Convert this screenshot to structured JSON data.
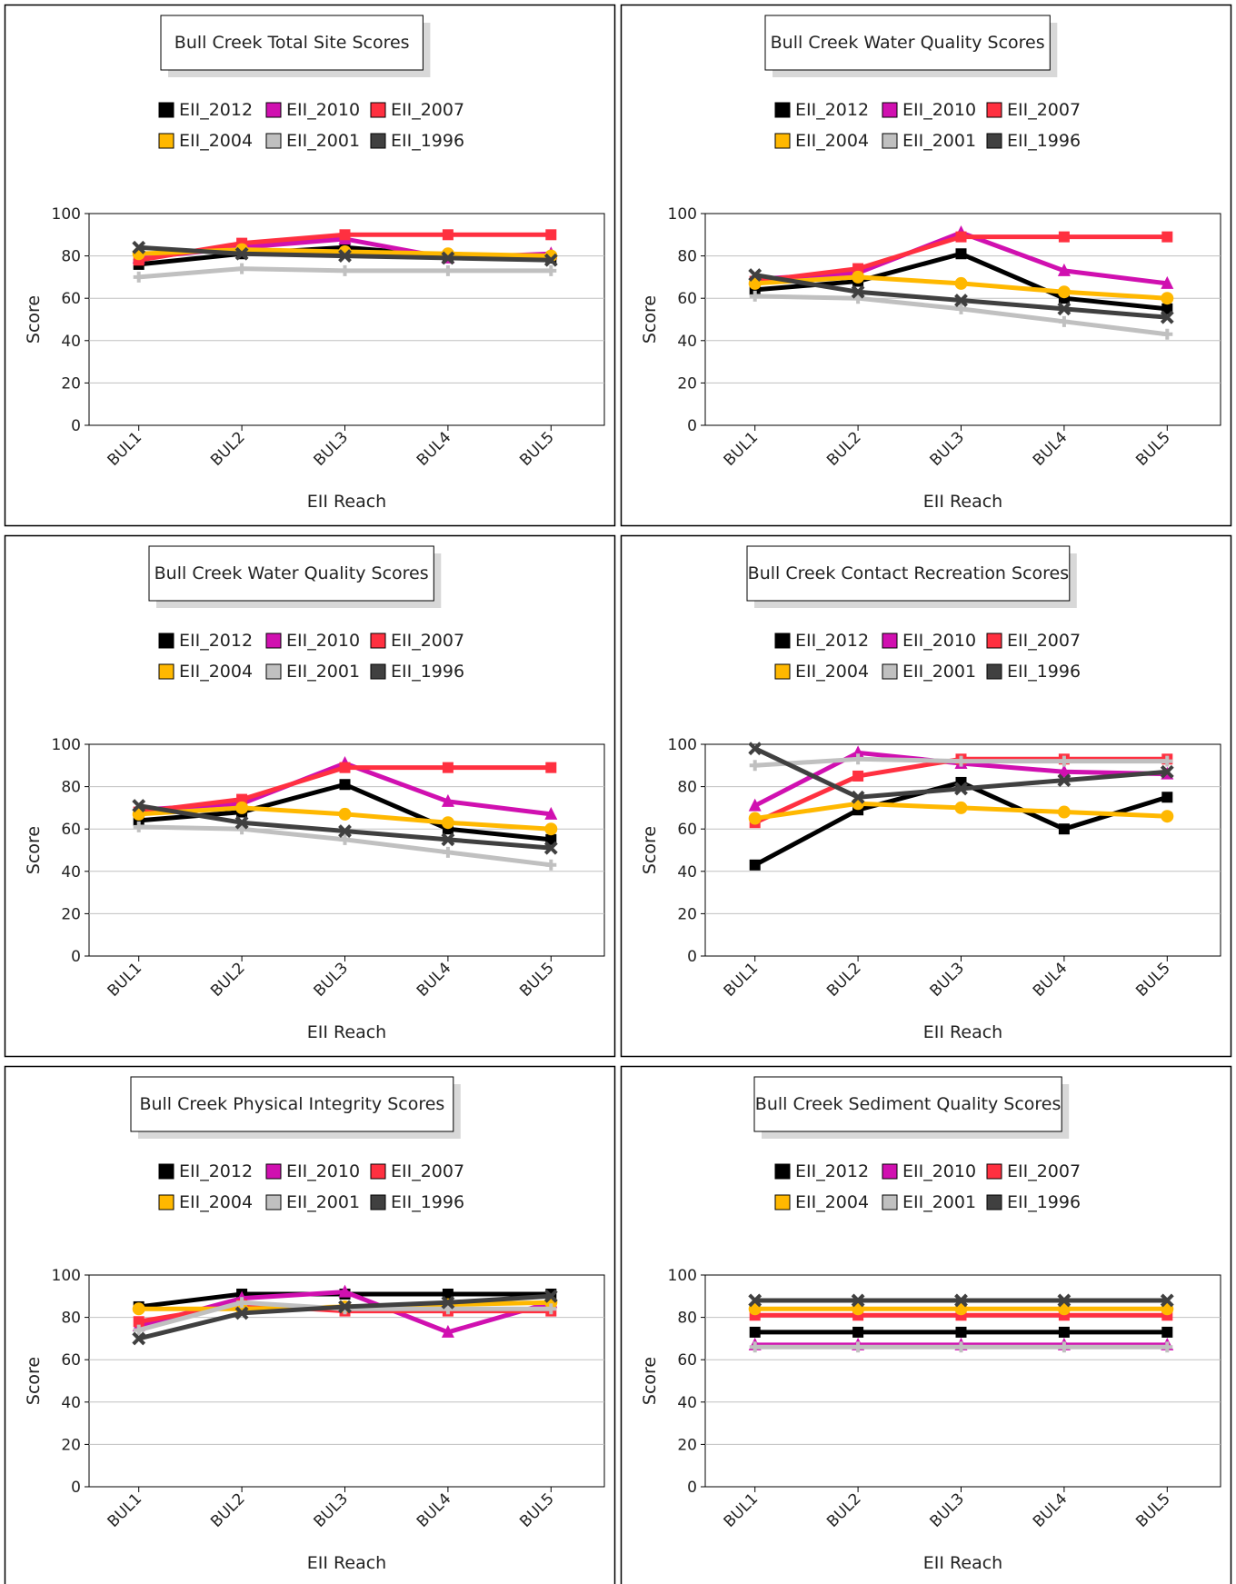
{
  "legend_colors": {
    "EII_2012": "#000000",
    "EII_2010": "#d010b0",
    "EII_2007": "#ff3040",
    "EII_2004": "#ffb800",
    "EII_2001": "#c0c0c0",
    "EII_1996": "#404040"
  },
  "chart_data": [
    {
      "type": "line",
      "title": "Bull Creek Total Site Scores",
      "xlabel": "EII Reach",
      "ylabel": "Score",
      "ylim": [
        0,
        100
      ],
      "yticks": [
        0,
        20,
        40,
        60,
        80,
        100
      ],
      "grid": true,
      "legend_position": "top",
      "categories": [
        "BUL1",
        "BUL2",
        "BUL3",
        "BUL4",
        "BUL5"
      ],
      "series": [
        {
          "name": "EII_2012",
          "color": "#000000",
          "marker": "square",
          "values": [
            76,
            81,
            84,
            80,
            79
          ]
        },
        {
          "name": "EII_2010",
          "color": "#d010b0",
          "marker": "triangle",
          "values": [
            79,
            84,
            88,
            79,
            81
          ]
        },
        {
          "name": "EII_2007",
          "color": "#ff3040",
          "marker": "square",
          "values": [
            78,
            86,
            90,
            90,
            90
          ]
        },
        {
          "name": "EII_2004",
          "color": "#ffb800",
          "marker": "circle",
          "values": [
            81,
            83,
            82,
            81,
            80
          ]
        },
        {
          "name": "EII_2001",
          "color": "#c0c0c0",
          "marker": "plus",
          "values": [
            70,
            74,
            73,
            73,
            73
          ]
        },
        {
          "name": "EII_1996",
          "color": "#404040",
          "marker": "x",
          "values": [
            84,
            81,
            80,
            79,
            78
          ]
        }
      ]
    },
    {
      "type": "line",
      "title": "Bull Creek Water Quality Scores",
      "xlabel": "EII Reach",
      "ylabel": "Score",
      "ylim": [
        0,
        100
      ],
      "yticks": [
        0,
        20,
        40,
        60,
        80,
        100
      ],
      "grid": true,
      "legend_position": "top",
      "categories": [
        "BUL1",
        "BUL2",
        "BUL3",
        "BUL4",
        "BUL5"
      ],
      "series": [
        {
          "name": "EII_2012",
          "color": "#000000",
          "marker": "square",
          "values": [
            64,
            68,
            81,
            60,
            55
          ]
        },
        {
          "name": "EII_2010",
          "color": "#d010b0",
          "marker": "triangle",
          "values": [
            69,
            72,
            91,
            73,
            67
          ]
        },
        {
          "name": "EII_2007",
          "color": "#ff3040",
          "marker": "square",
          "values": [
            68,
            74,
            89,
            89,
            89
          ]
        },
        {
          "name": "EII_2004",
          "color": "#ffb800",
          "marker": "circle",
          "values": [
            67,
            70,
            67,
            63,
            60
          ]
        },
        {
          "name": "EII_2001",
          "color": "#c0c0c0",
          "marker": "plus",
          "values": [
            61,
            60,
            55,
            49,
            43
          ]
        },
        {
          "name": "EII_1996",
          "color": "#404040",
          "marker": "x",
          "values": [
            71,
            63,
            59,
            55,
            51
          ]
        }
      ]
    },
    {
      "type": "line",
      "title": "Bull Creek Water Quality Scores",
      "xlabel": "EII Reach",
      "ylabel": "Score",
      "ylim": [
        0,
        100
      ],
      "yticks": [
        0,
        20,
        40,
        60,
        80,
        100
      ],
      "grid": true,
      "legend_position": "top",
      "categories": [
        "BUL1",
        "BUL2",
        "BUL3",
        "BUL4",
        "BUL5"
      ],
      "series": [
        {
          "name": "EII_2012",
          "color": "#000000",
          "marker": "square",
          "values": [
            64,
            68,
            81,
            60,
            55
          ]
        },
        {
          "name": "EII_2010",
          "color": "#d010b0",
          "marker": "triangle",
          "values": [
            69,
            72,
            91,
            73,
            67
          ]
        },
        {
          "name": "EII_2007",
          "color": "#ff3040",
          "marker": "square",
          "values": [
            68,
            74,
            89,
            89,
            89
          ]
        },
        {
          "name": "EII_2004",
          "color": "#ffb800",
          "marker": "circle",
          "values": [
            67,
            70,
            67,
            63,
            60
          ]
        },
        {
          "name": "EII_2001",
          "color": "#c0c0c0",
          "marker": "plus",
          "values": [
            61,
            60,
            55,
            49,
            43
          ]
        },
        {
          "name": "EII_1996",
          "color": "#404040",
          "marker": "x",
          "values": [
            71,
            63,
            59,
            55,
            51
          ]
        }
      ]
    },
    {
      "type": "line",
      "title": "Bull Creek Contact Recreation Scores",
      "xlabel": "EII Reach",
      "ylabel": "Score",
      "ylim": [
        0,
        100
      ],
      "yticks": [
        0,
        20,
        40,
        60,
        80,
        100
      ],
      "grid": true,
      "legend_position": "top",
      "categories": [
        "BUL1",
        "BUL2",
        "BUL3",
        "BUL4",
        "BUL5"
      ],
      "series": [
        {
          "name": "EII_2012",
          "color": "#000000",
          "marker": "square",
          "values": [
            43,
            69,
            82,
            60,
            75
          ]
        },
        {
          "name": "EII_2010",
          "color": "#d010b0",
          "marker": "triangle",
          "values": [
            71,
            96,
            91,
            87,
            86
          ]
        },
        {
          "name": "EII_2007",
          "color": "#ff3040",
          "marker": "square",
          "values": [
            63,
            85,
            93,
            93,
            93
          ]
        },
        {
          "name": "EII_2004",
          "color": "#ffb800",
          "marker": "circle",
          "values": [
            65,
            72,
            70,
            68,
            66
          ]
        },
        {
          "name": "EII_2001",
          "color": "#c0c0c0",
          "marker": "plus",
          "values": [
            90,
            93,
            92,
            92,
            92
          ]
        },
        {
          "name": "EII_1996",
          "color": "#404040",
          "marker": "x",
          "values": [
            98,
            75,
            79,
            83,
            87
          ]
        }
      ]
    },
    {
      "type": "line",
      "title": "Bull Creek Physical Integrity Scores",
      "xlabel": "EII Reach",
      "ylabel": "Score",
      "ylim": [
        0,
        100
      ],
      "yticks": [
        0,
        20,
        40,
        60,
        80,
        100
      ],
      "grid": true,
      "legend_position": "top",
      "categories": [
        "BUL1",
        "BUL2",
        "BUL3",
        "BUL4",
        "BUL5"
      ],
      "series": [
        {
          "name": "EII_2012",
          "color": "#000000",
          "marker": "square",
          "values": [
            85,
            91,
            91,
            91,
            91
          ]
        },
        {
          "name": "EII_2010",
          "color": "#d010b0",
          "marker": "triangle",
          "values": [
            76,
            89,
            92,
            73,
            87
          ]
        },
        {
          "name": "EII_2007",
          "color": "#ff3040",
          "marker": "square",
          "values": [
            78,
            86,
            83,
            83,
            83
          ]
        },
        {
          "name": "EII_2004",
          "color": "#ffb800",
          "marker": "circle",
          "values": [
            84,
            84,
            85,
            86,
            87
          ]
        },
        {
          "name": "EII_2001",
          "color": "#c0c0c0",
          "marker": "plus",
          "values": [
            74,
            87,
            84,
            84,
            84
          ]
        },
        {
          "name": "EII_1996",
          "color": "#404040",
          "marker": "x",
          "values": [
            70,
            82,
            85,
            87,
            90
          ]
        }
      ]
    },
    {
      "type": "line",
      "title": "Bull Creek Sediment Quality Scores",
      "xlabel": "EII Reach",
      "ylabel": "Score",
      "ylim": [
        0,
        100
      ],
      "yticks": [
        0,
        20,
        40,
        60,
        80,
        100
      ],
      "grid": true,
      "legend_position": "top",
      "categories": [
        "BUL1",
        "BUL2",
        "BUL3",
        "BUL4",
        "BUL5"
      ],
      "series": [
        {
          "name": "EII_2012",
          "color": "#000000",
          "marker": "square",
          "values": [
            73,
            73,
            73,
            73,
            73
          ]
        },
        {
          "name": "EII_2010",
          "color": "#d010b0",
          "marker": "triangle",
          "values": [
            67,
            67,
            67,
            67,
            67
          ]
        },
        {
          "name": "EII_2007",
          "color": "#ff3040",
          "marker": "square",
          "values": [
            81,
            81,
            81,
            81,
            81
          ]
        },
        {
          "name": "EII_2004",
          "color": "#ffb800",
          "marker": "circle",
          "values": [
            84,
            84,
            84,
            84,
            84
          ]
        },
        {
          "name": "EII_2001",
          "color": "#c0c0c0",
          "marker": "plus",
          "values": [
            66,
            66,
            66,
            66,
            66
          ]
        },
        {
          "name": "EII_1996",
          "color": "#404040",
          "marker": "x",
          "values": [
            88,
            88,
            88,
            88,
            88
          ]
        }
      ]
    }
  ]
}
